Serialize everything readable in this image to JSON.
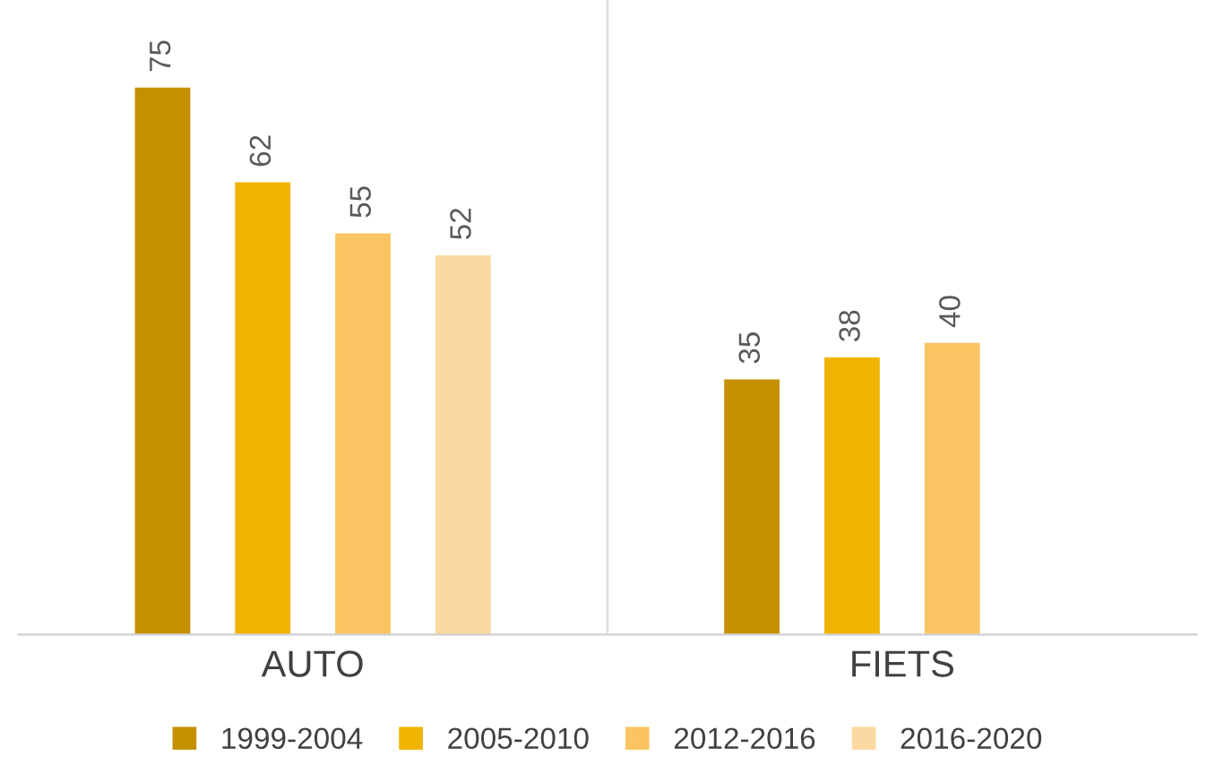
{
  "chart_data": {
    "type": "bar",
    "categories": [
      "AUTO",
      "FIETS"
    ],
    "series": [
      {
        "name": "1999-2004",
        "color": "#c49000",
        "values": [
          75,
          35
        ]
      },
      {
        "name": "2005-2010",
        "color": "#f0b400",
        "values": [
          62,
          38
        ]
      },
      {
        "name": "2012-2016",
        "color": "#fbc462",
        "values": [
          55,
          40
        ]
      },
      {
        "name": "2016-2020",
        "color": "#fcd9a0",
        "values": [
          52,
          null
        ]
      }
    ],
    "data_labels": true,
    "legend": "bottom",
    "grid": "x"
  }
}
